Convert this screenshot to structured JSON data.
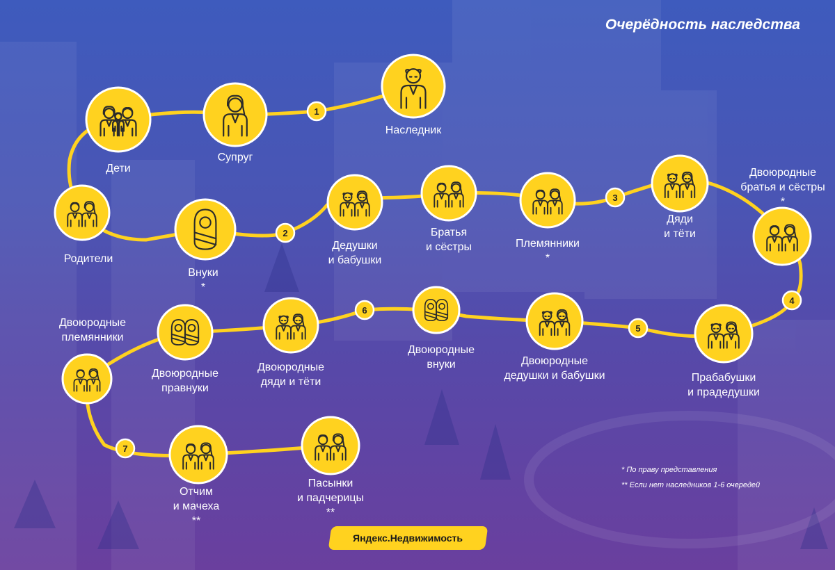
{
  "title": "Очерёдность наследства",
  "colors": {
    "accent": "#ffd21f",
    "line": "#ffd21f",
    "icon_stroke": "#2b2b2b",
    "text": "#ffffff"
  },
  "nodes": [
    {
      "id": "heir",
      "label": [
        "Наследник"
      ],
      "icon": "old-man-icon"
    },
    {
      "id": "spouse",
      "label": [
        "Супруг"
      ],
      "icon": "woman-icon"
    },
    {
      "id": "children",
      "label": [
        "Дети"
      ],
      "icon": "family-icon"
    },
    {
      "id": "parents",
      "label": [
        "Родители"
      ],
      "icon": "couple-icon"
    },
    {
      "id": "grandchildren",
      "label": [
        "Внуки",
        "*"
      ],
      "icon": "baby-icon"
    },
    {
      "id": "grandparents",
      "label": [
        "Дедушки",
        "и бабушки"
      ],
      "icon": "elderly-couple-icon"
    },
    {
      "id": "siblings",
      "label": [
        "Братья",
        "и сёстры"
      ],
      "icon": "couple-icon"
    },
    {
      "id": "nephews",
      "label": [
        "Племянники",
        "*"
      ],
      "icon": "couple-icon"
    },
    {
      "id": "uncles",
      "label": [
        "Дяди",
        "и тёти"
      ],
      "icon": "elderly-couple-icon"
    },
    {
      "id": "cousins",
      "label": [
        "Двоюродные",
        "братья и сёстры",
        "*"
      ],
      "icon": "couple-icon"
    },
    {
      "id": "great-grandparents",
      "label": [
        "Прабабушки",
        "и прадедушки"
      ],
      "icon": "elderly-couple-icon"
    },
    {
      "id": "cousin-grandparents",
      "label": [
        "Двоюродные",
        "дедушки и бабушки"
      ],
      "icon": "elderly-couple-icon"
    },
    {
      "id": "cousin-grandchildren",
      "label": [
        "Двоюродные",
        "внуки"
      ],
      "icon": "twin-babies-icon"
    },
    {
      "id": "cousin-uncles",
      "label": [
        "Двоюродные",
        "дяди и тёти"
      ],
      "icon": "elderly-couple-icon"
    },
    {
      "id": "cousin-great-grandchildren",
      "label": [
        "Двоюродные",
        "правнуки"
      ],
      "icon": "twin-babies-icon"
    },
    {
      "id": "cousin-nephews",
      "label": [
        "Двоюродные",
        "племянники"
      ],
      "icon": "couple-icon"
    },
    {
      "id": "step-parents",
      "label": [
        "Отчим",
        "и мачеха",
        "**"
      ],
      "icon": "couple-icon"
    },
    {
      "id": "step-children",
      "label": [
        "Пасынки",
        "и падчерицы",
        "**"
      ],
      "icon": "couple-icon"
    }
  ],
  "queues": [
    "1",
    "2",
    "3",
    "4",
    "5",
    "6",
    "7"
  ],
  "footnotes": [
    "* По праву представления",
    "** Если нет наследников 1-6 очередей"
  ],
  "brand": "Яндекс.Недвижимость"
}
